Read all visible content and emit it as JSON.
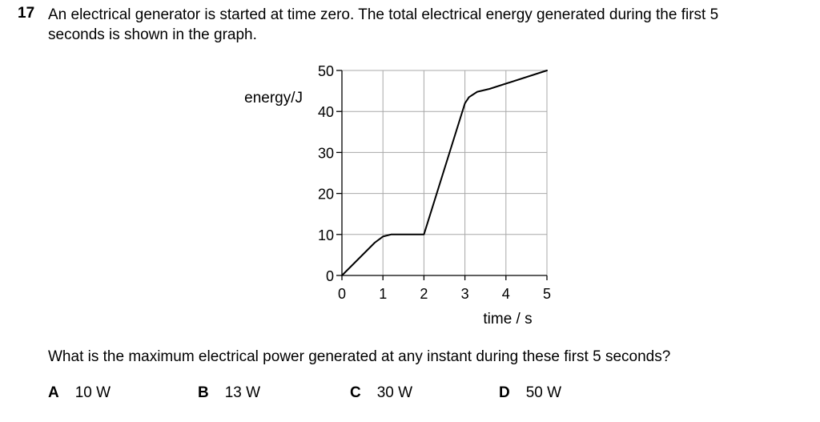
{
  "question": {
    "number": "17",
    "stem": "An electrical generator is started at time zero. The total electrical energy generated during the first 5 seconds is shown in the graph.",
    "prompt": "What is the maximum electrical power generated at any instant during these first 5 seconds?",
    "options": [
      {
        "letter": "A",
        "text": "10 W"
      },
      {
        "letter": "B",
        "text": "13 W"
      },
      {
        "letter": "C",
        "text": "30 W"
      },
      {
        "letter": "D",
        "text": "50 W"
      }
    ]
  },
  "chart_data": {
    "type": "line",
    "title": "",
    "xlabel": "time / s",
    "ylabel": "energy / J",
    "xlim": [
      0,
      5
    ],
    "ylim": [
      0,
      50
    ],
    "x_ticks": [
      0,
      1,
      2,
      3,
      4,
      5
    ],
    "y_ticks": [
      0,
      10,
      20,
      30,
      40,
      50
    ],
    "grid": true,
    "series": [
      {
        "x": [
          0,
          0.8,
          1.0,
          1.2,
          1.4,
          2.0,
          3.0,
          3.1,
          3.3,
          3.6,
          5.0
        ],
        "y": [
          0,
          8,
          9.5,
          10,
          10,
          10,
          42,
          43.5,
          44.8,
          45.5,
          50
        ]
      }
    ]
  }
}
